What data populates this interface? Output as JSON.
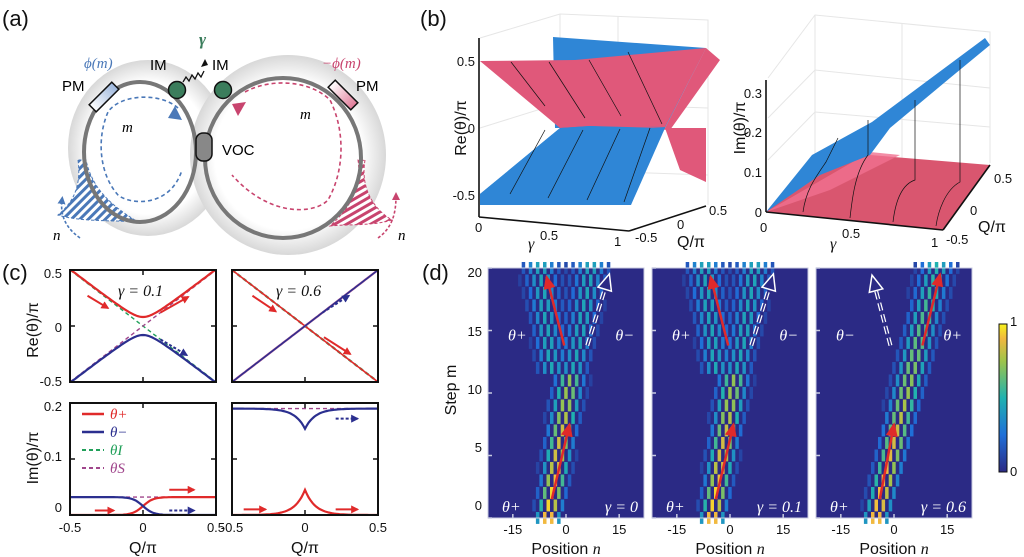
{
  "panels": {
    "a": "(a)",
    "b": "(b)",
    "c": "(c)",
    "d": "(d)"
  },
  "diagram": {
    "left_phase": "ϕ(m)",
    "right_phase": "−ϕ(m)",
    "pm_left": "PM",
    "pm_right": "PM",
    "im_left": "IM",
    "im_right": "IM",
    "gamma": "γ",
    "voc": "VOC",
    "m_left": "m",
    "m_right": "m",
    "n_left": "n",
    "n_right": "n",
    "colors": {
      "blue": "#4a78b8",
      "pink": "#c8446e",
      "green": "#3b7d5c",
      "gray": "#777777"
    }
  },
  "chart_data": [
    {
      "id": "b-re",
      "type": "surface",
      "title": "",
      "xlabel": "γ",
      "ylabel": "Q/π",
      "zlabel": "Re(θ)/π",
      "x_ticks": [
        "0",
        "0.5",
        "1"
      ],
      "y_ticks": [
        "-0.5",
        "0",
        "0.5"
      ],
      "z_ticks": [
        "0.5",
        "0",
        "-0.5"
      ],
      "xlim": [
        0,
        1
      ],
      "ylim": [
        -0.5,
        0.5
      ],
      "zlim": [
        -0.5,
        0.5
      ],
      "series": [
        {
          "name": "θ+",
          "color": "#e0587a"
        },
        {
          "name": "θ−",
          "color": "#2f86d6"
        }
      ]
    },
    {
      "id": "b-im",
      "type": "surface",
      "xlabel": "γ",
      "ylabel": "Q/π",
      "zlabel": "Im(θ)/π",
      "x_ticks": [
        "0",
        "0.5",
        "1"
      ],
      "y_ticks": [
        "-0.5",
        "0",
        "0.5"
      ],
      "z_ticks": [
        "0.3",
        "0.2",
        "0.1",
        "0"
      ],
      "xlim": [
        0,
        1
      ],
      "ylim": [
        -0.5,
        0.5
      ],
      "zlim": [
        0,
        0.33
      ],
      "series": [
        {
          "name": "θ+",
          "color": "#e0587a"
        },
        {
          "name": "θ−",
          "color": "#2f86d6"
        }
      ]
    },
    {
      "id": "c-re-g01",
      "type": "line",
      "annotation": "γ = 0.1",
      "ylabel": "Re(θ)/π",
      "xlim": [
        -0.5,
        0.5
      ],
      "ylim": [
        -0.5,
        0.5
      ],
      "y_ticks": [
        "0.5",
        "0",
        "-0.5"
      ],
      "gamma": 0.1
    },
    {
      "id": "c-re-g06",
      "type": "line",
      "annotation": "γ = 0.6",
      "xlim": [
        -0.5,
        0.5
      ],
      "ylim": [
        -0.5,
        0.5
      ],
      "gamma": 0.6
    },
    {
      "id": "c-im-g01",
      "type": "line",
      "ylabel": "Im(θ)/π",
      "xlabel": "Q/π",
      "xlim": [
        -0.5,
        0.5
      ],
      "ylim": [
        0,
        0.2
      ],
      "x_ticks": [
        "-0.5",
        "0",
        "0.5"
      ],
      "y_ticks": [
        "0.2",
        "0.1",
        "0"
      ],
      "gamma": 0.1,
      "legend": [
        {
          "name": "θ+",
          "color": "#e02a2a",
          "dash": false
        },
        {
          "name": "θ−",
          "color": "#2b2f8f",
          "dash": false
        },
        {
          "name": "θI",
          "color": "#21a05a",
          "dash": true
        },
        {
          "name": "θS",
          "color": "#a0468c",
          "dash": true
        }
      ],
      "levels": {
        "theta_I": 0,
        "theta_S": 0.032
      }
    },
    {
      "id": "c-im-g06",
      "type": "line",
      "xlabel": "Q/π",
      "xlim": [
        -0.5,
        0.5
      ],
      "ylim": [
        0,
        0.2
      ],
      "x_ticks": [
        "-0.5",
        "0",
        "0.5"
      ],
      "gamma": 0.6,
      "levels": {
        "theta_I": 0,
        "theta_S": 0.19
      }
    },
    {
      "id": "d-heatmaps",
      "type": "heatmap",
      "xlabel": "Position n",
      "ylabel": "Step m",
      "x_ticks": [
        "-15",
        "0",
        "15"
      ],
      "y_ticks": [
        "20",
        "15",
        "10",
        "5",
        "0"
      ],
      "xlim": [
        -22,
        22
      ],
      "ylim": [
        0,
        20
      ],
      "colorbar": {
        "min": "0",
        "max": "1"
      },
      "panels": [
        {
          "gamma_label": "γ = 0",
          "upper_left": "θ+",
          "upper_right": "θ−",
          "lower": "θ+",
          "split": true,
          "drift_plus": -0.35,
          "drift_minus": 0.55
        },
        {
          "gamma_label": "γ = 0.1",
          "upper_left": "θ+",
          "upper_right": "θ−",
          "lower": "θ+",
          "split": true,
          "drift_plus": -0.35,
          "drift_minus": 0.55
        },
        {
          "gamma_label": "γ = 0.6",
          "upper_left": "θ−",
          "upper_right": "θ+",
          "lower": "θ+",
          "split": false,
          "drift_plus": 0.85,
          "drift_minus": 0
        }
      ]
    }
  ]
}
